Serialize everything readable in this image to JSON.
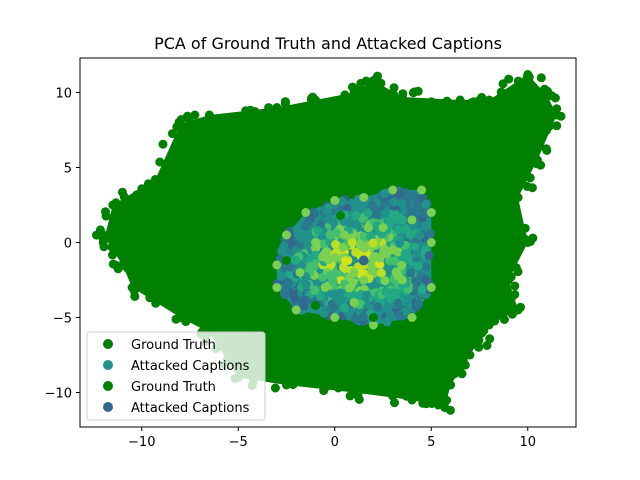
{
  "chart_data": {
    "type": "scatter",
    "title": "PCA of Ground Truth and Attacked Captions",
    "xlabel": "",
    "ylabel": "",
    "xlim": [
      -13.2,
      12.5
    ],
    "ylim": [
      -12.3,
      12.3
    ],
    "x_ticks": [
      -10,
      -5,
      0,
      5,
      10
    ],
    "y_ticks": [
      -10,
      -5,
      0,
      5,
      10
    ],
    "grid": false,
    "legend_position": "lower-left",
    "series": [
      {
        "name": "Ground Truth",
        "color": "#008000",
        "shape": "dense-cloud",
        "points": [
          [
            -12.0,
            0.0
          ],
          [
            -11.5,
            2.5
          ],
          [
            -9.3,
            4.2
          ],
          [
            -8.0,
            7.9
          ],
          [
            -6.5,
            8.5
          ],
          [
            -3.0,
            9.0
          ],
          [
            -1.0,
            9.5
          ],
          [
            1.0,
            10.0
          ],
          [
            2.0,
            10.8
          ],
          [
            3.5,
            9.7
          ],
          [
            6.5,
            9.5
          ],
          [
            8.0,
            9.5
          ],
          [
            10.0,
            11.2
          ],
          [
            11.0,
            9.8
          ],
          [
            11.5,
            8.5
          ],
          [
            10.5,
            5.5
          ],
          [
            9.5,
            3.0
          ],
          [
            10.0,
            0.0
          ],
          [
            9.0,
            -2.5
          ],
          [
            9.5,
            -4.5
          ],
          [
            8.0,
            -5.5
          ],
          [
            7.0,
            -7.5
          ],
          [
            6.0,
            -9.5
          ],
          [
            5.7,
            -11.0
          ],
          [
            4.0,
            -10.5
          ],
          [
            1.0,
            -10.0
          ],
          [
            -2.5,
            -9.5
          ],
          [
            -5.0,
            -9.0
          ],
          [
            -6.5,
            -6.0
          ],
          [
            -8.0,
            -5.0
          ],
          [
            -10.5,
            -3.0
          ],
          [
            -11.0,
            -1.5
          ],
          [
            -12.0,
            0.5
          ],
          [
            -8.5,
            1.0
          ],
          [
            -4.0,
            3.0
          ],
          [
            -2.0,
            5.0
          ],
          [
            2.0,
            6.0
          ],
          [
            6.0,
            5.0
          ],
          [
            8.0,
            2.0
          ],
          [
            6.0,
            -3.0
          ],
          [
            3.0,
            -6.5
          ],
          [
            -2.0,
            -6.0
          ],
          [
            -5.5,
            -3.0
          ],
          [
            -7.0,
            3.5
          ],
          [
            4.5,
            7.5
          ],
          [
            -1.0,
            -8.5
          ],
          [
            5.5,
            -8.0
          ],
          [
            9.0,
            7.0
          ],
          [
            -9.5,
            0.5
          ],
          [
            0.0,
            8.0
          ]
        ]
      },
      {
        "name": "Attacked Captions",
        "color": "#21918c",
        "shape": "viridis-blob",
        "points": [
          [
            -3.0,
            -1.5
          ],
          [
            -2.5,
            0.5
          ],
          [
            -1.5,
            2.0
          ],
          [
            0.0,
            2.8
          ],
          [
            1.5,
            3.0
          ],
          [
            3.0,
            3.5
          ],
          [
            4.5,
            3.5
          ],
          [
            5.0,
            2.0
          ],
          [
            5.0,
            0.0
          ],
          [
            5.0,
            -3.0
          ],
          [
            4.0,
            -5.0
          ],
          [
            2.0,
            -5.5
          ],
          [
            0.0,
            -5.0
          ],
          [
            -2.0,
            -4.5
          ],
          [
            -3.0,
            -3.0
          ],
          [
            0.0,
            -1.0
          ],
          [
            1.0,
            -2.0
          ],
          [
            2.0,
            -1.0
          ],
          [
            -1.0,
            0.0
          ],
          [
            1.5,
            -2.5
          ],
          [
            3.0,
            -0.5
          ],
          [
            -0.5,
            -3.0
          ],
          [
            2.5,
            1.0
          ],
          [
            3.5,
            -2.5
          ],
          [
            0.5,
            0.5
          ],
          [
            -1.8,
            -2.0
          ],
          [
            4.0,
            1.5
          ],
          [
            1.0,
            -4.0
          ]
        ]
      },
      {
        "name": "Ground Truth",
        "color": "#008000",
        "shape": "outliers",
        "points": [
          [
            0.3,
            1.8
          ],
          [
            -2.5,
            -1.2
          ],
          [
            6.0,
            2.7
          ],
          [
            2.0,
            -5.0
          ],
          [
            -1.0,
            -4.2
          ]
        ]
      },
      {
        "name": "Attacked Captions",
        "color": "#31688e",
        "shape": "single-point",
        "points": [
          [
            1.5,
            -1.2
          ]
        ]
      }
    ]
  }
}
